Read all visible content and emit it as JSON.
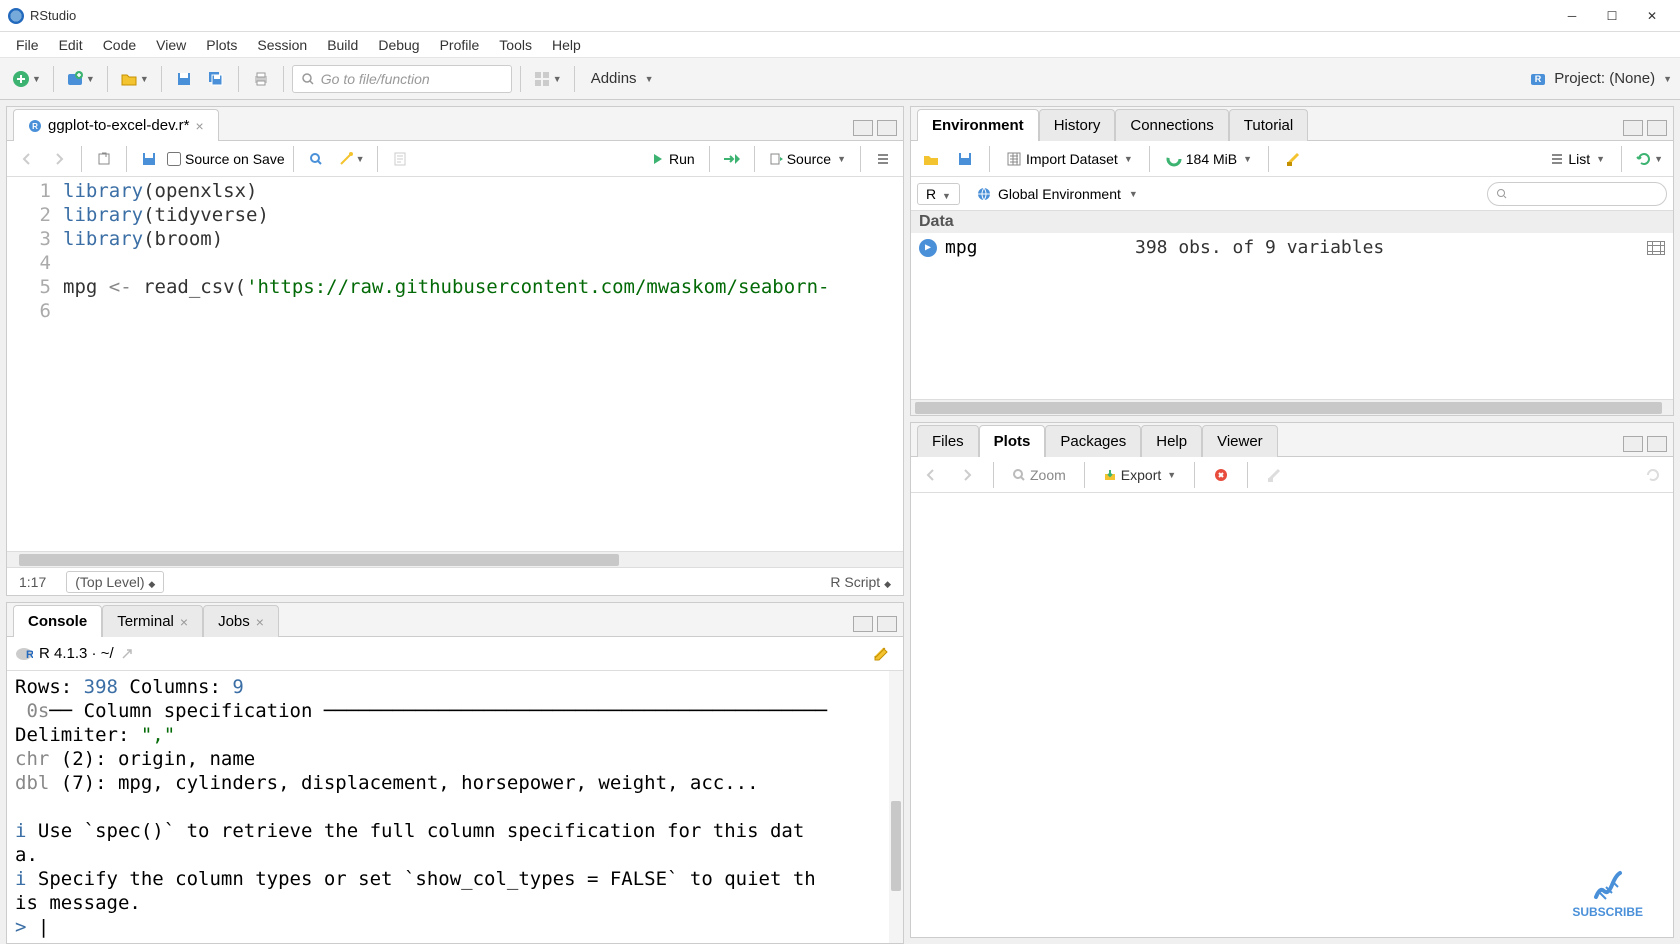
{
  "window": {
    "title": "RStudio"
  },
  "menu": {
    "items": [
      "File",
      "Edit",
      "Code",
      "View",
      "Plots",
      "Session",
      "Build",
      "Debug",
      "Profile",
      "Tools",
      "Help"
    ]
  },
  "toolbar": {
    "goto_placeholder": "Go to file/function",
    "addins_label": "Addins",
    "project_label": "Project: (None)"
  },
  "source": {
    "tab_filename": "ggplot-to-excel-dev.r*",
    "source_on_save": "Source on Save",
    "run_label": "Run",
    "source_label": "Source",
    "cursor_position": "1:17",
    "scope": "(Top Level)",
    "file_type": "R Script",
    "code_lines": [
      {
        "n": "1",
        "tokens": [
          {
            "t": "library",
            "c": "kw"
          },
          {
            "t": "(",
            "c": "paren"
          },
          {
            "t": "openxlsx",
            "c": ""
          },
          {
            "t": ")",
            "c": "paren"
          }
        ]
      },
      {
        "n": "2",
        "tokens": [
          {
            "t": "library",
            "c": "kw"
          },
          {
            "t": "(",
            "c": "paren"
          },
          {
            "t": "tidyverse",
            "c": ""
          },
          {
            "t": ")",
            "c": "paren"
          }
        ]
      },
      {
        "n": "3",
        "tokens": [
          {
            "t": "library",
            "c": "kw"
          },
          {
            "t": "(",
            "c": "paren"
          },
          {
            "t": "broom",
            "c": ""
          },
          {
            "t": ")",
            "c": "paren"
          }
        ]
      },
      {
        "n": "4",
        "tokens": []
      },
      {
        "n": "5",
        "tokens": [
          {
            "t": "mpg ",
            "c": ""
          },
          {
            "t": "<- ",
            "c": "op"
          },
          {
            "t": "read_csv",
            "c": ""
          },
          {
            "t": "(",
            "c": "paren"
          },
          {
            "t": "'https://raw.githubusercontent.com/mwaskom/seaborn-",
            "c": "str"
          }
        ]
      },
      {
        "n": "6",
        "tokens": []
      }
    ]
  },
  "console": {
    "tabs": [
      "Console",
      "Terminal",
      "Jobs"
    ],
    "prompt_info": "R 4.1.3 · ~/",
    "output_html": "Rows: <span class='blue'>398</span> Columns: <span class='blue'>9</span>\n <span class='gray'>0s</span>── Column specification ────────────────────────────────────────────\nDelimiter: <span class='str'>\",\"</span>\n<span class='gray'>chr</span> (2): origin, name\n<span class='gray'>dbl</span> (7): mpg, cylinders, displacement, horsepower, weight, acc...\n\n<span class='blue'>i</span> Use `spec()` to retrieve the full column specification for this dat\na.\n<span class='blue'>i</span> Specify the column types or set `show_col_types = FALSE` to quiet th\nis message.\n<span class='blue'>&gt;</span> |"
  },
  "environment": {
    "tabs": [
      "Environment",
      "History",
      "Connections",
      "Tutorial"
    ],
    "import_label": "Import Dataset",
    "memory": "184 MiB",
    "list_label": "List",
    "scope_r": "R",
    "scope_global": "Global Environment",
    "section": "Data",
    "rows": [
      {
        "name": "mpg",
        "value": "398 obs. of 9 variables"
      }
    ]
  },
  "plots": {
    "tabs": [
      "Files",
      "Plots",
      "Packages",
      "Help",
      "Viewer"
    ],
    "zoom_label": "Zoom",
    "export_label": "Export"
  },
  "subscribe": {
    "label": "SUBSCRIBE"
  },
  "colors": {
    "keyword": "#3a6ea5",
    "string": "#036a07",
    "gray": "#888888",
    "accent": "#4a90d9"
  }
}
